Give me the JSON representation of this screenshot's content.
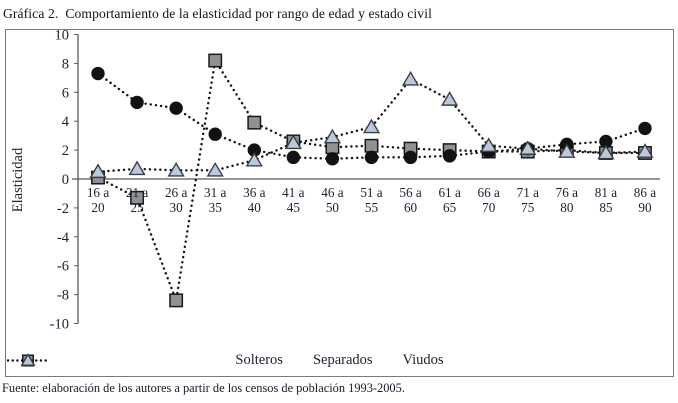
{
  "title": "Gráfica 2.  Comportamiento de la elasticidad por rango de edad y estado civil",
  "footer": "Fuente: elaboración de los autores a partir de los censos de población 1993-2005.",
  "chart_data": {
    "type": "line",
    "title": "Gráfica 2. Comportamiento de la elasticidad por rango de edad y estado civil",
    "xlabel": "",
    "ylabel": "Elasticidad",
    "ylim": [
      -10,
      10
    ],
    "ytick_step": 2,
    "yticks": [
      10,
      8,
      6,
      4,
      2,
      0,
      -2,
      -4,
      -6,
      -8,
      -10
    ],
    "grid": false,
    "legend_position": "bottom-center",
    "line_style": "dotted",
    "line_color": "#141414",
    "categories": [
      "16 a 20",
      "21 a 25",
      "26 a 30",
      "31 a 35",
      "36 a 40",
      "41 a 45",
      "46 a 50",
      "51 a 55",
      "56 a 60",
      "61 a 65",
      "66 a 70",
      "71 a 75",
      "76 a 80",
      "81 a 85",
      "86 a 90"
    ],
    "series": [
      {
        "name": "Solteros",
        "marker": "circle",
        "marker_fill": "#121212",
        "marker_stroke": "#121212",
        "values": [
          7.3,
          5.3,
          4.9,
          3.1,
          2.0,
          1.5,
          1.4,
          1.5,
          1.5,
          1.6,
          1.9,
          2.1,
          2.4,
          2.6,
          3.5
        ]
      },
      {
        "name": "Separados",
        "marker": "square",
        "marker_fill": "#8f9295",
        "marker_stroke": "#17191b",
        "values": [
          0.1,
          -1.3,
          -8.4,
          8.2,
          3.9,
          2.6,
          2.2,
          2.3,
          2.1,
          2.0,
          1.9,
          1.9,
          2.0,
          1.8,
          1.8
        ]
      },
      {
        "name": "Viudos",
        "marker": "triangle",
        "marker_fill": "#bcc9dc",
        "marker_stroke": "#3a3f47",
        "values": [
          0.5,
          0.7,
          0.6,
          0.6,
          1.3,
          2.5,
          2.9,
          3.6,
          6.9,
          5.5,
          2.3,
          2.1,
          1.9,
          1.8,
          1.9
        ]
      }
    ]
  }
}
